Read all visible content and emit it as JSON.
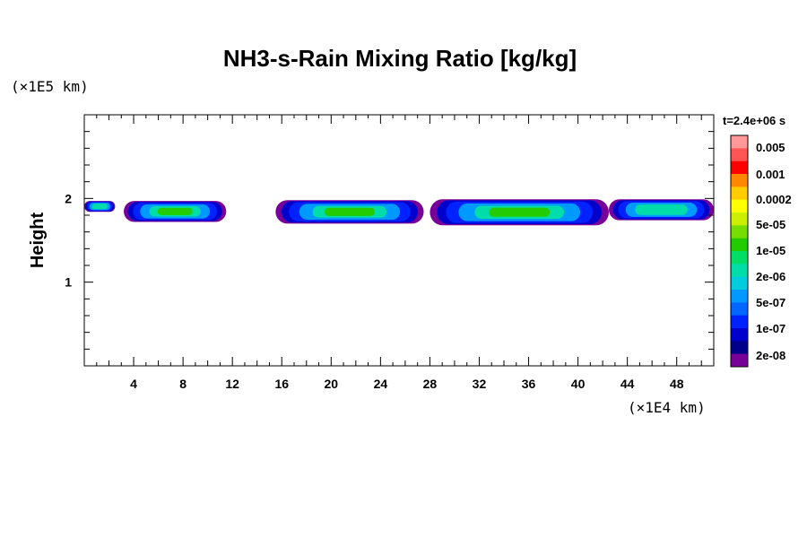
{
  "chart_data": {
    "type": "heatmap",
    "title": "NH3-s-Rain Mixing Ratio [kg/kg]",
    "ylabel": "Height",
    "x_unit": "(×1E4 km)",
    "y_unit": "(×1E5 km)",
    "time_label": "t=2.4e+06 s",
    "xlim": [
      0,
      51
    ],
    "ylim": [
      0,
      3
    ],
    "x_ticks": [
      4,
      8,
      12,
      16,
      20,
      24,
      28,
      32,
      36,
      40,
      44,
      48
    ],
    "y_ticks": [
      1,
      2
    ],
    "colorbar": {
      "labels": [
        "0.005",
        "0.001",
        "0.0002",
        "5e-05",
        "1e-05",
        "2e-06",
        "5e-07",
        "1e-07",
        "2e-08"
      ],
      "colors": [
        "#ff9999",
        "#ff5555",
        "#ff0000",
        "#ff8800",
        "#ffcc00",
        "#ffff00",
        "#ccee00",
        "#77dd00",
        "#22cc00",
        "#00dd66",
        "#00ddaa",
        "#00ccdd",
        "#0099ff",
        "#0066ff",
        "#0022ff",
        "#0000cc",
        "#000088",
        "#770099"
      ]
    },
    "clouds": [
      {
        "x0": 0.0,
        "x1": 2.5,
        "y_top": 1.97,
        "y_bot": 1.84,
        "peak": "blue"
      },
      {
        "x0": 3.2,
        "x1": 11.5,
        "y_top": 1.97,
        "y_bot": 1.72,
        "peak": "green"
      },
      {
        "x0": 15.5,
        "x1": 27.5,
        "y_top": 1.98,
        "y_bot": 1.7,
        "peak": "green"
      },
      {
        "x0": 28.0,
        "x1": 42.5,
        "y_top": 1.99,
        "y_bot": 1.68,
        "peak": "green"
      },
      {
        "x0": 42.5,
        "x1": 51.0,
        "y_top": 1.99,
        "y_bot": 1.74,
        "peak": "blue"
      }
    ]
  }
}
